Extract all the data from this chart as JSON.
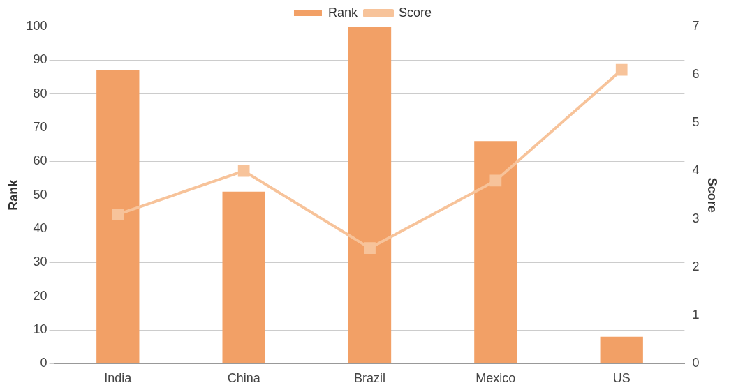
{
  "chart_data": {
    "type": "bar",
    "categories": [
      "India",
      "China",
      "Brazil",
      "Mexico",
      "US"
    ],
    "series": [
      {
        "name": "Rank",
        "color": "#f2a066",
        "values": [
          87,
          51,
          100,
          66,
          8
        ]
      },
      {
        "name": "Score",
        "type": "line",
        "axis": "y2",
        "color": "#f7c39a",
        "marker": "square",
        "values": [
          3.1,
          4.0,
          2.4,
          3.8,
          6.1
        ]
      }
    ],
    "ylabel": "Rank",
    "y2label": "Score",
    "ylim": [
      0,
      100
    ],
    "yticks": [
      0,
      10,
      20,
      30,
      40,
      50,
      60,
      70,
      80,
      90,
      100
    ],
    "y2lim": [
      0,
      7
    ],
    "y2ticks": [
      0,
      1,
      2,
      3,
      4,
      5,
      6,
      7
    ],
    "grid": "y",
    "legend": "top"
  }
}
